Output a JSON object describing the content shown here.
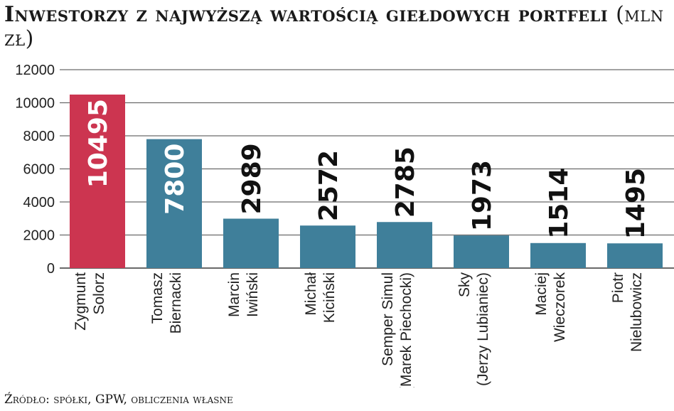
{
  "title": {
    "main": "Inwestorzy z najwyższą wartością giełdowych portfeli",
    "unit": "(mln zł)"
  },
  "source": "Źródło: spółki, GPW, obliczenia własne",
  "colors": {
    "highlight": "#cc3550",
    "bar": "#3f7f9a",
    "grid": "#6a6a6a"
  },
  "chart_data": {
    "type": "bar",
    "title": "Inwestorzy z najwyższą wartością giełdowych portfeli (mln zł)",
    "categories": [
      [
        "Zygmunt",
        "Solorz"
      ],
      [
        "Tomasz",
        "Biernacki"
      ],
      [
        "Marcin",
        "Iwiński"
      ],
      [
        "Michał",
        "Kiciński"
      ],
      [
        "Semper Simul",
        "(Marek Piechocki)"
      ],
      [
        "Sky",
        "(Jerzy Lubianiec)"
      ],
      [
        "Maciej",
        "Wieczorek"
      ],
      [
        "Piotr",
        "Nielubowicz"
      ]
    ],
    "values": [
      10495,
      7800,
      2989,
      2572,
      2785,
      1973,
      1514,
      1495
    ],
    "highlight_index": 0,
    "ylim": [
      0,
      12000
    ],
    "yticks": [
      0,
      2000,
      4000,
      6000,
      8000,
      10000,
      12000
    ],
    "grid": true,
    "legend": "none"
  }
}
